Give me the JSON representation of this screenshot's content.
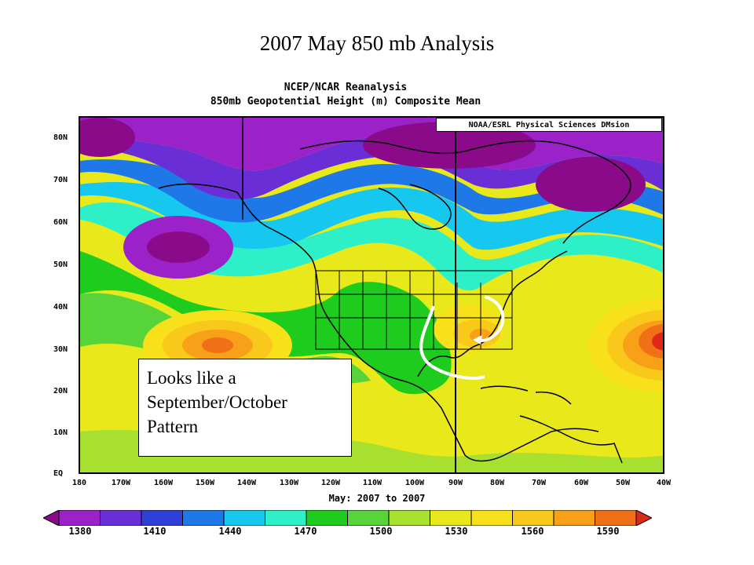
{
  "title": "2007 May 850 mb Analysis",
  "map": {
    "header_line1": "NCEP/NCAR Reanalysis",
    "header_line2": "850mb Geopotential Height (m) Composite Mean",
    "credit": "NOAA/ESRL Physical Sciences DMsion",
    "period_label": "May: 2007 to 2007",
    "lat_labels": [
      "80N",
      "70N",
      "60N",
      "50N",
      "40N",
      "30N",
      "20N",
      "10N",
      "EQ"
    ],
    "lon_labels": [
      "180",
      "170W",
      "160W",
      "150W",
      "140W",
      "130W",
      "120W",
      "110W",
      "100W",
      "90W",
      "80W",
      "70W",
      "60W",
      "50W",
      "40W"
    ],
    "field": "850mb geopotential height (m)",
    "colors": {
      "low_extreme": "#8a0a8a",
      "purple": "#9b22c8",
      "violet": "#7a2fd6",
      "blue": "#2f40d8",
      "mid_blue": "#1f78e8",
      "cyan": "#16c8f0",
      "aqua": "#2ef0c8",
      "light_green": "#56d43a",
      "green": "#1ecc1e",
      "yellow_green": "#a8e030",
      "yellow": "#e8e81a",
      "light_orange": "#f8c81a",
      "orange": "#f8a018",
      "dark_orange": "#f06014",
      "red": "#e02818"
    }
  },
  "annotation": {
    "line1": "Looks like a",
    "line2": "September/October",
    "line3": "Pattern"
  },
  "colorbar": {
    "labels": [
      "1380",
      "1410",
      "1440",
      "1470",
      "1500",
      "1530",
      "1560",
      "1590"
    ],
    "colors": [
      "#8a0a8a",
      "#9b22c8",
      "#6a2ed6",
      "#2f40d8",
      "#1f78e8",
      "#16c8f0",
      "#2ef0c8",
      "#1ecc1e",
      "#56d43a",
      "#a8e030",
      "#e8e81a",
      "#f8e01a",
      "#f8c81a",
      "#f8a018",
      "#f07018",
      "#e02818"
    ]
  }
}
